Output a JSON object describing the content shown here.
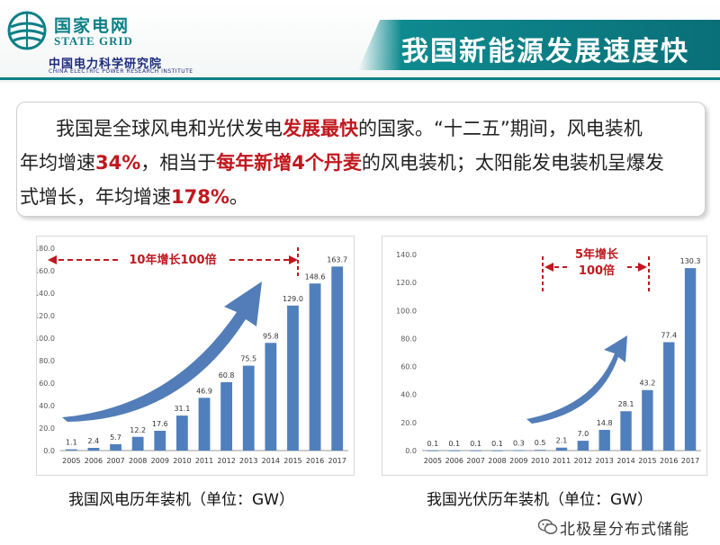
{
  "header": {
    "logo_cn": "国家电网",
    "logo_en": "STATE GRID",
    "institute_cn": "中国电力科学研究院",
    "institute_en": "CHINA ELECTRIC POWER RESEARCH INSTITUTE",
    "title": "我国新能源发展速度快"
  },
  "intro": {
    "line1_a": "我国是全球风电和光伏发电",
    "line1_hl": "发展最快",
    "line1_b": "的国家。“十二五”期间，风电装机",
    "line2_a": "年均增速",
    "line2_hl1": "34%",
    "line2_b": "，相当于",
    "line2_hl2": "每年新增4个丹麦",
    "line2_c": "的风电装机；太阳能发电装机呈爆发",
    "line3_a": "式增长，年均增速",
    "line3_hl": "178%",
    "line3_b": "。"
  },
  "colors": {
    "bar": "#4f80bd",
    "arrow": "#4a76b4",
    "annotation": "#c0181f",
    "brand": "#0c7f86"
  },
  "chart_data": [
    {
      "type": "bar",
      "categories": [
        "2005",
        "2006",
        "2007",
        "2008",
        "2009",
        "2010",
        "2011",
        "2012",
        "2013",
        "2014",
        "2015",
        "2016",
        "2017"
      ],
      "values": [
        1.1,
        2.4,
        5.7,
        12.2,
        17.6,
        31.1,
        46.9,
        60.8,
        75.5,
        95.8,
        129.0,
        148.6,
        163.7
      ],
      "value_labels": [
        "1.1",
        "2.4",
        "5.7",
        "12.2",
        "17.6",
        "31.1",
        "46.9",
        "60.8",
        "75.5",
        "95.8",
        "129.0",
        "148.6",
        "163.7"
      ],
      "ylim": [
        0,
        180
      ],
      "yticks": [
        "0.0",
        "20.0",
        "40.0",
        "60.0",
        "80.0",
        "100.0",
        "120.0",
        "140.0",
        "160.0",
        "180.0"
      ],
      "annotation": "10年增长100倍",
      "caption": "我国风电历年装机（单位：GW）",
      "grid": false
    },
    {
      "type": "bar",
      "categories": [
        "2005",
        "2006",
        "2007",
        "2008",
        "2009",
        "2010",
        "2011",
        "2012",
        "2013",
        "2014",
        "2015",
        "2016",
        "2017"
      ],
      "values": [
        0.1,
        0.1,
        0.1,
        0.1,
        0.3,
        0.5,
        2.1,
        7.0,
        14.8,
        28.1,
        43.2,
        77.4,
        130.3
      ],
      "value_labels": [
        "0.1",
        "0.1",
        "0.1",
        "0.1",
        "0.3",
        "0.5",
        "2.1",
        "7.0",
        "14.8",
        "28.1",
        "43.2",
        "77.4",
        "130.3"
      ],
      "ylim": [
        0,
        140
      ],
      "yticks": [
        "0.0",
        "20.0",
        "40.0",
        "60.0",
        "80.0",
        "100.0",
        "120.0",
        "140.0"
      ],
      "annotation_line1": "5年增长",
      "annotation_line2": "100倍",
      "caption": "我国光伏历年装机（单位：GW）",
      "grid": false
    }
  ],
  "watermark": {
    "text": "北极星分布式储能",
    "icon": "wechat-icon"
  }
}
